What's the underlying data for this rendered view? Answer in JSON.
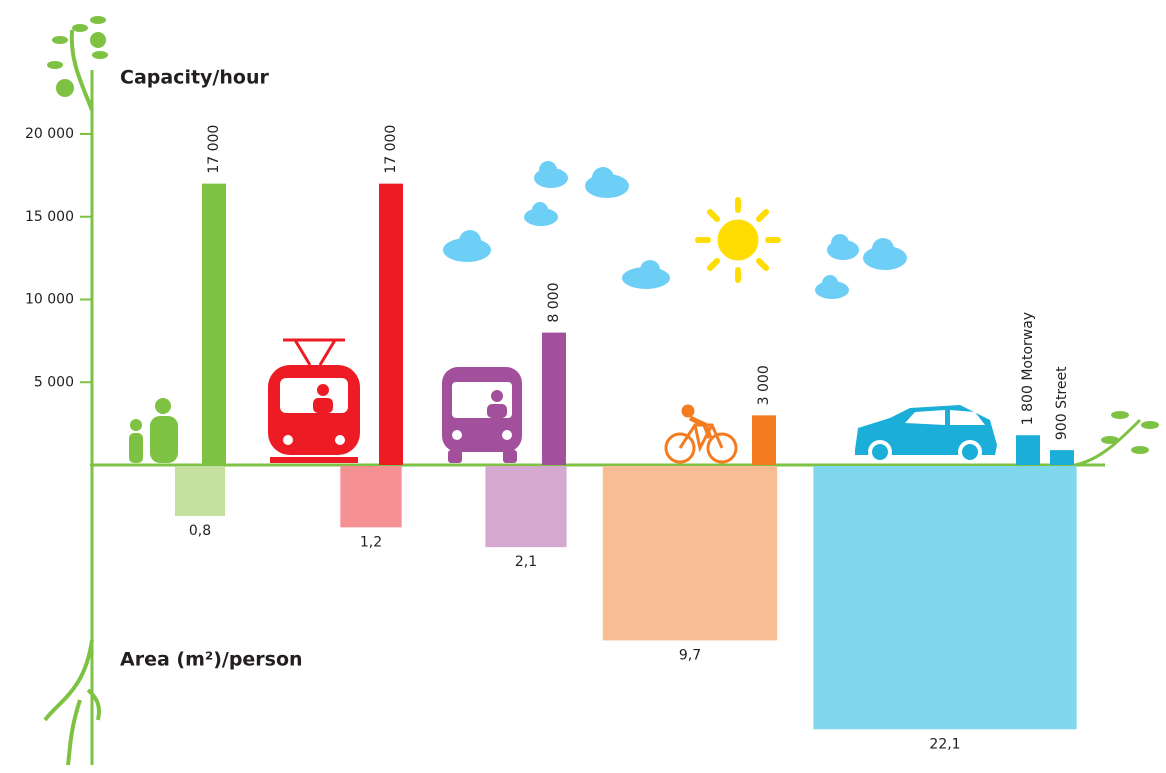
{
  "chart_data": {
    "type": "bar",
    "y_title": "Capacity/hour",
    "y2_title": "Area (m²)/person",
    "ylim": [
      0,
      20000
    ],
    "yticks": [
      {
        "value": 5000,
        "label": "5 000"
      },
      {
        "value": 10000,
        "label": "10 000"
      },
      {
        "value": 15000,
        "label": "15 000"
      },
      {
        "value": 20000,
        "label": "20 000"
      }
    ],
    "series": [
      {
        "name": "Capacity/hour",
        "values": [
          17000,
          17000,
          8000,
          3000,
          1800,
          900
        ],
        "value_labels": [
          "17 000",
          "17 000",
          "8 000",
          "3 000",
          "1 800 Motorway",
          "900 Street"
        ],
        "colors": [
          "#7dc242",
          "#ed1c24",
          "#a3509c",
          "#f47b20",
          "#1aaed8",
          "#1aaed8"
        ]
      },
      {
        "name": "Area (m²)/person",
        "values": [
          0.8,
          1.2,
          2.1,
          9.7,
          22.1
        ],
        "value_labels": [
          "0,8",
          "1,2",
          "2,1",
          "9,7",
          "22,1"
        ],
        "colors": [
          "#c4e1a0",
          "#f59194",
          "#d5a8d0",
          "#f8bd94",
          "#80d8ef"
        ]
      }
    ]
  }
}
